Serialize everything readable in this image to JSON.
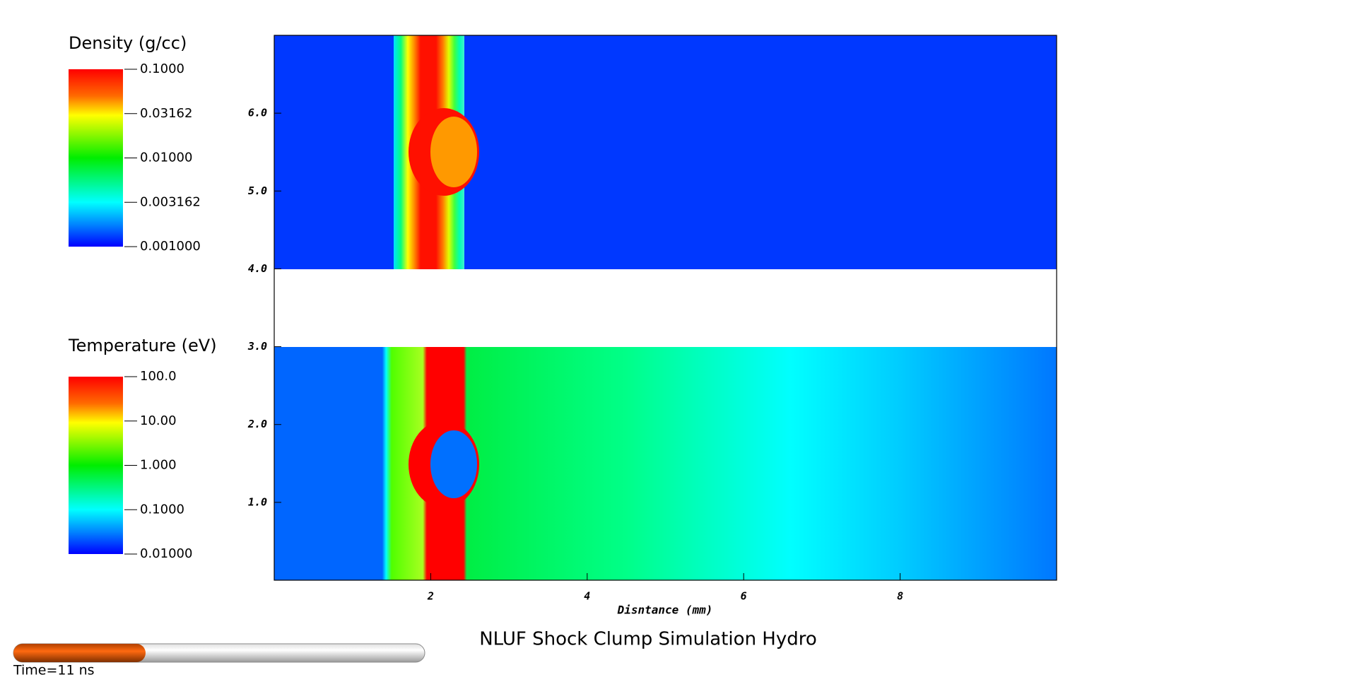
{
  "legends": [
    {
      "title": "Density (g/cc)",
      "labels": [
        "0.1000",
        "0.03162",
        "0.01000",
        "0.003162",
        "0.001000"
      ]
    },
    {
      "title": "Temperature (eV)",
      "labels": [
        "100.0",
        "10.00",
        "1.000",
        "0.1000",
        "0.01000"
      ]
    }
  ],
  "axes": {
    "xlabel": "Disntance (mm)",
    "xlim": [
      0,
      10
    ],
    "xticks": [
      2,
      4,
      6,
      8
    ],
    "ylim": [
      0,
      7
    ],
    "yticks": [
      {
        "value": 1,
        "label": "1.0"
      },
      {
        "value": 2,
        "label": "2.0"
      },
      {
        "value": 3,
        "label": "3.0"
      },
      {
        "value": 4,
        "label": "4.0"
      },
      {
        "value": 5,
        "label": "5.0"
      },
      {
        "value": 6,
        "label": "6.0"
      }
    ]
  },
  "title": "NLUF Shock Clump Simulation Hydro",
  "time_label": "Time=11 ns"
}
